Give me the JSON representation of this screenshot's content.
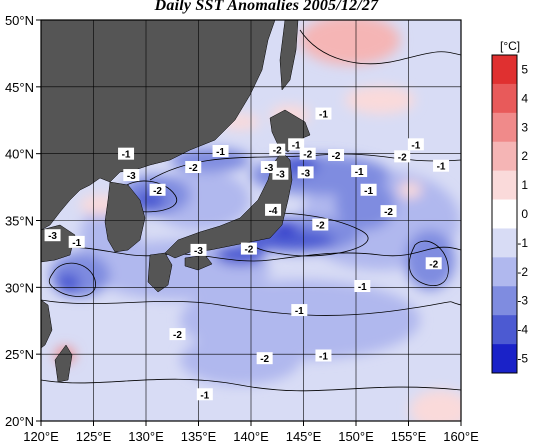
{
  "title": "Daily SST Anomalies 2005/12/27",
  "map": {
    "lon_ticks": [
      "120°E",
      "125°E",
      "130°E",
      "135°E",
      "140°E",
      "145°E",
      "150°E",
      "155°E",
      "160°E"
    ],
    "lat_ticks": [
      "50°N",
      "45°N",
      "40°N",
      "35°N",
      "30°N",
      "25°N",
      "20°N"
    ],
    "lon_range": [
      120,
      160
    ],
    "lat_range": [
      20,
      50
    ],
    "land_color": "#555555",
    "grid_lines": true
  },
  "colorbar": {
    "unit_label": "[°C]",
    "ticks": [
      "5",
      "4",
      "3",
      "2",
      "1",
      "0",
      "-1",
      "-2",
      "-3",
      "-4",
      "-5"
    ],
    "colors": [
      "#e03030",
      "#e85a5a",
      "#f08a8a",
      "#f5b5b5",
      "#fadada",
      "#ffffff",
      "#d8dcf5",
      "#b0b8ee",
      "#7f8ce0",
      "#4c5ad2",
      "#1a22c8"
    ]
  },
  "contour_labels": [
    {
      "text": "-1",
      "lon": 144.3,
      "lat": 40.7
    },
    {
      "text": "-1",
      "lon": 137.1,
      "lat": 40.2
    },
    {
      "text": "-2",
      "lon": 142.5,
      "lat": 40.3
    },
    {
      "text": "-3",
      "lon": 142.8,
      "lat": 38.5
    },
    {
      "text": "-2",
      "lon": 145.4,
      "lat": 40.0
    },
    {
      "text": "-2",
      "lon": 148.1,
      "lat": 39.9
    },
    {
      "text": "-2",
      "lon": 154.4,
      "lat": 39.8
    },
    {
      "text": "-1",
      "lon": 155.7,
      "lat": 40.7
    },
    {
      "text": "-1",
      "lon": 158.1,
      "lat": 39.1
    },
    {
      "text": "-2",
      "lon": 134.5,
      "lat": 39.0
    },
    {
      "text": "-3",
      "lon": 141.7,
      "lat": 39.0
    },
    {
      "text": "-3",
      "lon": 145.2,
      "lat": 38.6
    },
    {
      "text": "-1",
      "lon": 150.3,
      "lat": 38.7
    },
    {
      "text": "-3",
      "lon": 128.6,
      "lat": 38.4
    },
    {
      "text": "-2",
      "lon": 131.1,
      "lat": 37.3
    },
    {
      "text": "-1",
      "lon": 151.2,
      "lat": 37.3
    },
    {
      "text": "-4",
      "lon": 142.1,
      "lat": 35.8
    },
    {
      "text": "-2",
      "lon": 146.6,
      "lat": 34.7
    },
    {
      "text": "-2",
      "lon": 153.1,
      "lat": 35.7
    },
    {
      "text": "-1",
      "lon": 123.4,
      "lat": 33.4
    },
    {
      "text": "-3",
      "lon": 135.0,
      "lat": 32.8
    },
    {
      "text": "-2",
      "lon": 139.8,
      "lat": 32.9
    },
    {
      "text": "-2",
      "lon": 157.4,
      "lat": 31.8
    },
    {
      "text": "-1",
      "lon": 150.6,
      "lat": 30.1
    },
    {
      "text": "-2",
      "lon": 141.3,
      "lat": 24.7
    },
    {
      "text": "-2",
      "lon": 133.0,
      "lat": 26.5
    },
    {
      "text": "-1",
      "lon": 146.9,
      "lat": 24.9
    },
    {
      "text": "-1",
      "lon": 135.6,
      "lat": 22.0
    },
    {
      "text": "-3",
      "lon": 121.1,
      "lat": 33.9
    },
    {
      "text": "-1",
      "lon": 144.6,
      "lat": 28.3
    },
    {
      "text": "-1",
      "lon": 128.1,
      "lat": 40.0
    },
    {
      "text": "-1",
      "lon": 146.9,
      "lat": 43.0
    }
  ]
}
